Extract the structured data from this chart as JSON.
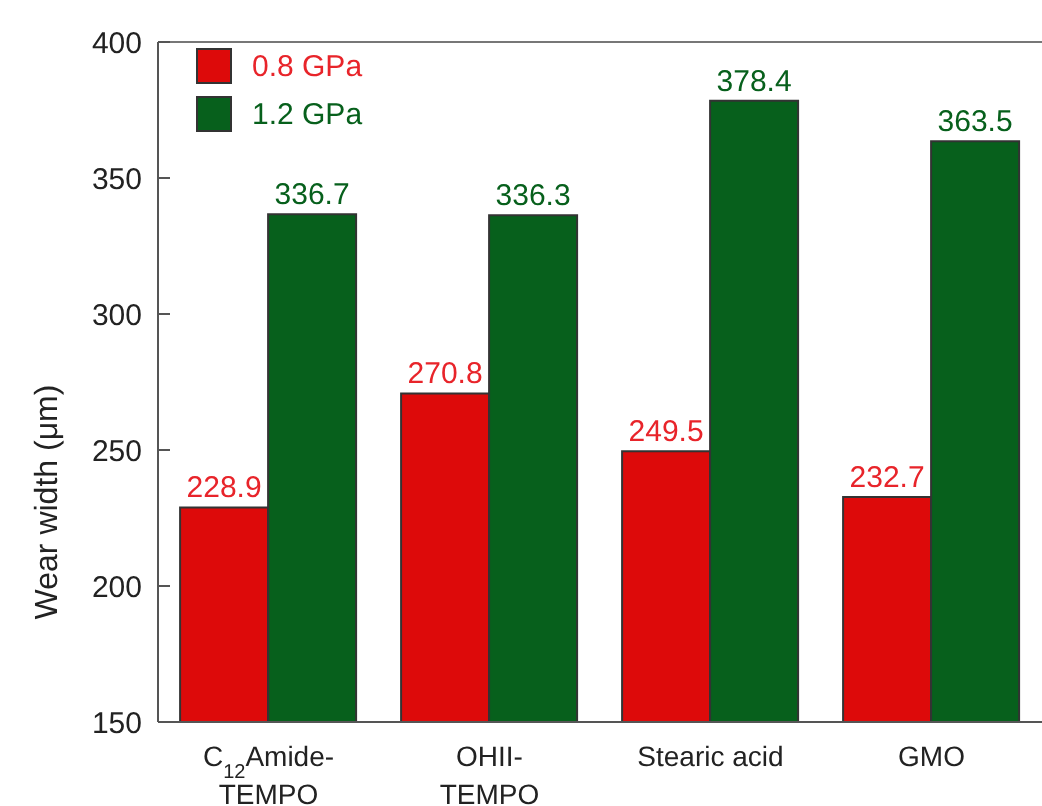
{
  "chart_data": {
    "type": "bar",
    "ylabel": "Wear width (μm)",
    "categories": [
      "C$_{12}$Amide-TEMPO",
      "OHII-TEMPO",
      "Stearic acid",
      "GMO"
    ],
    "series": [
      {
        "name": "0.8 GPa",
        "color": "#dd0a0a",
        "values": [
          228.9,
          270.8,
          249.5,
          232.7
        ]
      },
      {
        "name": "1.2 GPa",
        "color": "#07601c",
        "values": [
          336.7,
          336.3,
          378.4,
          363.5
        ]
      }
    ],
    "ylim": [
      150,
      400
    ],
    "yticks": [
      150,
      200,
      250,
      300,
      350,
      400
    ],
    "data_labels": true,
    "legend": "top left",
    "grid": false
  }
}
